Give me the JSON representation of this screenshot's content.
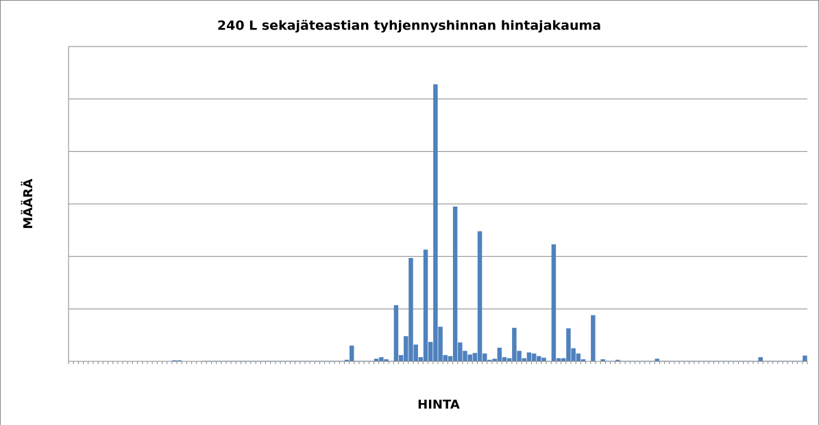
{
  "chart_data": {
    "type": "bar",
    "title": "240 L sekajäteastian tyhjennyshinnan hintajakauma",
    "x_label": "HINTA",
    "y_label": "MÄÄRÄ",
    "color": "#4f81bd",
    "grid": true,
    "ylim": [
      0,
      6
    ],
    "yticks": [
      0,
      1,
      2,
      3,
      4,
      5,
      6
    ],
    "categories": [
      null,
      null,
      null,
      null,
      null,
      null,
      null,
      null,
      null,
      null,
      null,
      null,
      null,
      null,
      null,
      null,
      null,
      null,
      null,
      null,
      null,
      null,
      null,
      null,
      null,
      null,
      null,
      null,
      null,
      null,
      null,
      null,
      null,
      null,
      null,
      null,
      null,
      null,
      null,
      null,
      null,
      null,
      null,
      null,
      null,
      null,
      null,
      null,
      null,
      null,
      null,
      null,
      null,
      null,
      null,
      null,
      null,
      null,
      null,
      null,
      null,
      null,
      null,
      null,
      null,
      null,
      null,
      null,
      null,
      null,
      null,
      null,
      null,
      null,
      null,
      null,
      null,
      null,
      null,
      null,
      null,
      null,
      null,
      null,
      null,
      null,
      null,
      null,
      null,
      null,
      null,
      null,
      null,
      null,
      null,
      null,
      null,
      null,
      null,
      null,
      null,
      null,
      null,
      null,
      null,
      null,
      null,
      null,
      null,
      null,
      null,
      null,
      null,
      null,
      null,
      null,
      null,
      null,
      null,
      null,
      null,
      null,
      null,
      null,
      null,
      null,
      null,
      null,
      null,
      null,
      null,
      null,
      null,
      null,
      null,
      null,
      null,
      null,
      null,
      null,
      null,
      null,
      null,
      null,
      null,
      null,
      null,
      null,
      null,
      null
    ],
    "values": [
      0,
      0,
      0,
      0,
      0,
      0,
      0,
      0,
      0,
      0,
      0,
      0,
      0,
      0,
      0,
      0,
      0,
      0,
      0,
      0,
      0,
      0.02,
      0.02,
      0,
      0,
      0,
      0,
      0.01,
      0.01,
      0.01,
      0.01,
      0.01,
      0.01,
      0.01,
      0.01,
      0.01,
      0.01,
      0.01,
      0.01,
      0.01,
      0.01,
      0.01,
      0.01,
      0.01,
      0.01,
      0.01,
      0.01,
      0.01,
      0.01,
      0.01,
      0.01,
      0.01,
      0.01,
      0.01,
      0.01,
      0.01,
      0.03,
      0.3,
      0.01,
      0.01,
      0.01,
      0.01,
      0.05,
      0.08,
      0.04,
      0.01,
      1.07,
      0.12,
      0.48,
      1.97,
      0.32,
      0.08,
      2.13,
      0.37,
      5.28,
      0.66,
      0.12,
      0.1,
      2.95,
      0.36,
      0.2,
      0.13,
      0.16,
      2.48,
      0.15,
      0.03,
      0.05,
      0.26,
      0.08,
      0.06,
      0.64,
      0.2,
      0.06,
      0.17,
      0.15,
      0.1,
      0.07,
      0.01,
      2.23,
      0.06,
      0.06,
      0.63,
      0.25,
      0.15,
      0.04,
      0,
      0.88,
      0,
      0.04,
      0.01,
      0.01,
      0.03,
      0.01,
      0.01,
      0.01,
      0.01,
      0.01,
      0.01,
      0.01,
      0.05,
      0.01,
      0.01,
      0.01,
      0.01,
      0.01,
      0.01,
      0.01,
      0.01,
      0.01,
      0.01,
      0.01,
      0.01,
      0.01,
      0.01,
      0.01,
      0.01,
      0.01,
      0.01,
      0.01,
      0.01,
      0.08,
      0.01,
      0.01,
      0.01,
      0.01,
      0.01,
      0.01,
      0.01,
      0.01,
      0.11
    ]
  }
}
